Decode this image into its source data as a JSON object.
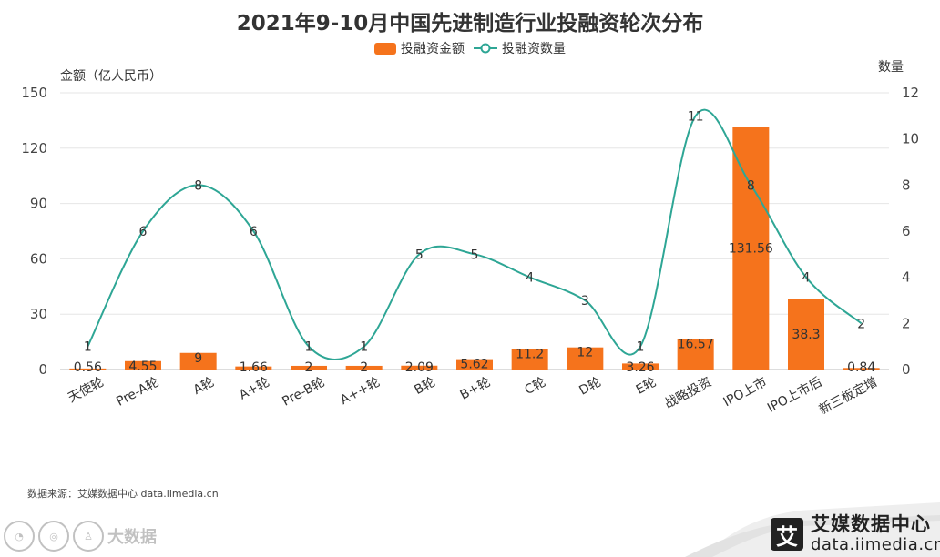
{
  "header": {
    "title": "2021年9-10月中国先进制造行业投融资轮次分布"
  },
  "legend": {
    "bar_label": "投融资金额",
    "line_label": "投融资数量"
  },
  "axes": {
    "left_title": "金额（亿人民币）",
    "right_title": "数量",
    "left_ticks": [
      "0",
      "30",
      "60",
      "90",
      "120",
      "150"
    ],
    "right_ticks": [
      "0",
      "2",
      "4",
      "6",
      "8",
      "10",
      "12"
    ]
  },
  "chart_data": {
    "type": "bar",
    "categories": [
      "天使轮",
      "Pre-A轮",
      "A轮",
      "A+轮",
      "Pre-B轮",
      "A++轮",
      "B轮",
      "B+轮",
      "C轮",
      "D轮",
      "E轮",
      "战略投资",
      "IPO上市",
      "IPO上市后",
      "新三板定增"
    ],
    "series": [
      {
        "name": "投融资金额",
        "type": "bar",
        "axis": "left",
        "values": [
          0.56,
          4.55,
          9,
          1.66,
          2,
          2,
          2.09,
          5.62,
          11.2,
          12,
          3.26,
          16.57,
          131.56,
          38.3,
          0.84
        ]
      },
      {
        "name": "投融资数量",
        "type": "line",
        "axis": "right",
        "values": [
          1,
          6,
          8,
          6,
          1,
          1,
          5,
          5,
          4,
          3,
          1,
          11,
          8,
          4,
          2
        ]
      }
    ],
    "ylabel": "金额（亿人民币）",
    "y2label": "数量",
    "ylim": [
      0,
      150
    ],
    "y2lim": [
      0,
      12
    ],
    "grid": true,
    "legend_position": "top-center"
  },
  "colors": {
    "bar": "#f5731c",
    "line": "#2ea695",
    "grid": "#e6e6e6"
  },
  "footer": {
    "source": "数据来源：艾媒数据中心 data.iimedia.cn",
    "brand_name": "艾媒数据中心",
    "brand_url": "data.iimedia.cn",
    "brand_logo_char": "艾",
    "watermark_text": "大数据"
  }
}
